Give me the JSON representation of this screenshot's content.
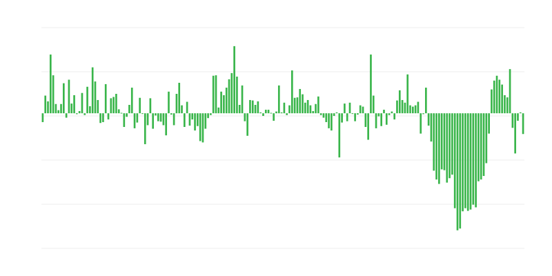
{
  "chart_data": {
    "type": "bar",
    "title": "",
    "xlabel": "",
    "ylabel": "",
    "grid": true,
    "bar_color": "#39b54a",
    "grid_color": "#eeeeee",
    "ylim": [
      -3.06,
      1.94
    ],
    "values": [
      -0.2,
      0.4,
      0.27,
      1.33,
      0.86,
      0.21,
      0.07,
      0.21,
      0.68,
      -0.1,
      0.76,
      0.22,
      0.41,
      -0.02,
      0.05,
      0.46,
      -0.04,
      0.6,
      0.16,
      1.04,
      0.72,
      0.3,
      -0.22,
      -0.2,
      0.66,
      -0.14,
      0.34,
      0.37,
      0.44,
      0.09,
      0.01,
      -0.31,
      -0.08,
      0.19,
      0.58,
      -0.34,
      -0.21,
      0.35,
      -0.01,
      -0.7,
      -0.27,
      0.34,
      -0.35,
      -0.05,
      -0.18,
      -0.19,
      -0.27,
      -0.5,
      0.49,
      -0.03,
      -0.27,
      0.44,
      0.69,
      0.18,
      -0.31,
      0.26,
      -0.28,
      -0.14,
      -0.39,
      -0.29,
      -0.63,
      -0.66,
      -0.35,
      -0.11,
      -0.04,
      0.85,
      0.86,
      0.13,
      0.49,
      0.41,
      0.58,
      0.77,
      0.91,
      1.52,
      0.83,
      0.19,
      0.63,
      -0.18,
      -0.51,
      0.3,
      0.29,
      0.19,
      0.27,
      0.02,
      -0.06,
      0.08,
      0.08,
      0.01,
      -0.17,
      0.04,
      0.63,
      0.02,
      0.24,
      -0.04,
      0.18,
      0.97,
      0.35,
      0.36,
      0.55,
      0.43,
      0.24,
      0.3,
      0.18,
      0.05,
      0.21,
      0.38,
      -0.04,
      -0.1,
      -0.2,
      -0.34,
      -0.39,
      -0.06,
      0.02,
      -1.0,
      -0.21,
      0.22,
      -0.18,
      0.24,
      0.0,
      -0.18,
      -0.03,
      0.18,
      0.15,
      -0.31,
      -0.6,
      1.33,
      0.4,
      -0.34,
      -0.07,
      -0.29,
      0.08,
      -0.26,
      -0.04,
      0.04,
      -0.14,
      0.29,
      0.52,
      0.3,
      0.24,
      0.88,
      0.18,
      0.15,
      0.18,
      0.26,
      -0.46,
      -0.02,
      0.58,
      -0.28,
      -0.64,
      -1.3,
      -1.5,
      -1.6,
      -1.27,
      -1.29,
      -1.57,
      -1.47,
      -1.39,
      -2.15,
      -2.65,
      -2.61,
      -2.22,
      -2.15,
      -2.21,
      -2.18,
      -2.07,
      -2.13,
      -1.54,
      -1.5,
      -1.42,
      -1.13,
      -0.46,
      0.54,
      0.74,
      0.85,
      0.76,
      0.65,
      0.41,
      0.36,
      1.0,
      -0.33,
      -0.91,
      -0.17,
      0.02,
      -0.47
    ]
  }
}
